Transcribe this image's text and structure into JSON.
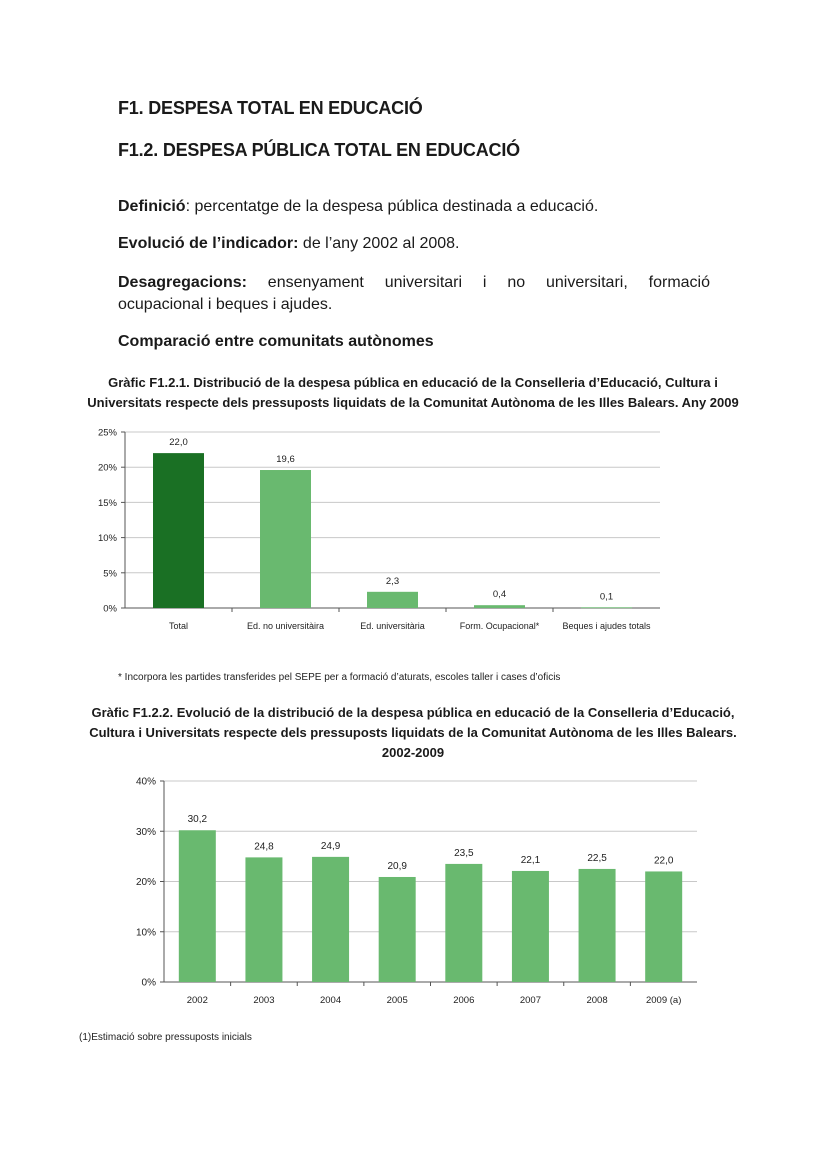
{
  "heading1": "F1. DESPESA TOTAL EN EDUCACIÓ",
  "heading2": "F1.2. DESPESA PÚBLICA TOTAL EN EDUCACIÓ",
  "definition": {
    "label": "Definició",
    "text": ": percentatge de la despesa pública destinada a educació."
  },
  "evolution": {
    "label": "Evolució de l’indicador:",
    "text": " de l’any 2002 al 2008."
  },
  "breakdown": {
    "label": "Desagregacions:",
    "text_line1": " ensenyament universitari i no universitari, formació",
    "text_line2": "ocupacional i beques i ajudes."
  },
  "comparison_title": "Comparació entre comunitats autònomes",
  "chart1_caption_line1": "Gràfic F1.2.1. Distribució de la despesa pública en educació de la Conselleria d’Educació, Cultura i",
  "chart1_caption_line2": "Universitats respecte dels pressuposts liquidats de la Comunitat Autònoma de les Illes Balears. Any 2009",
  "chart1_note": "* Incorpora les partides transferides pel SEPE per a formació d’aturats, escoles taller i cases d’oficis",
  "chart2_caption_line1": "Gràfic F1.2.2. Evolució de la distribució de la despesa pública en educació de la Conselleria d’Educació,",
  "chart2_caption_line2": "Cultura i Universitats  respecte dels pressuposts liquidats de la Comunitat Autònoma de les Illes Balears.",
  "chart2_caption_line3": "2002-2009",
  "chart2_note": "(1)Estimació sobre pressuposts inicials",
  "colors": {
    "dark_green": "#1a7024",
    "light_green": "#69b96f",
    "grid": "#c8c8c8"
  },
  "chart_data": [
    {
      "type": "bar",
      "categories": [
        "Total",
        "Ed. no universitàira",
        "Ed. universitària",
        "Form. Ocupacional*",
        "Beques i ajudes totals"
      ],
      "values": [
        22.0,
        19.6,
        2.3,
        0.4,
        0.1
      ],
      "value_labels": [
        "22,0",
        "19,6",
        "2,3",
        "0,4",
        "0,1"
      ],
      "yticks": [
        "0%",
        "5%",
        "10%",
        "15%",
        "20%",
        "25%"
      ],
      "ylim": [
        0,
        25
      ],
      "grid": true,
      "highlight_first": true
    },
    {
      "type": "bar",
      "categories": [
        "2002",
        "2003",
        "2004",
        "2005",
        "2006",
        "2007",
        "2008",
        "2009 (a)"
      ],
      "values": [
        30.2,
        24.8,
        24.9,
        20.9,
        23.5,
        22.1,
        22.5,
        22.0
      ],
      "value_labels": [
        "30,2",
        "24,8",
        "24,9",
        "20,9",
        "23,5",
        "22,1",
        "22,5",
        "22,0"
      ],
      "yticks": [
        "0%",
        "10%",
        "20%",
        "30%",
        "40%"
      ],
      "ylim": [
        0,
        40
      ],
      "grid": true
    }
  ]
}
